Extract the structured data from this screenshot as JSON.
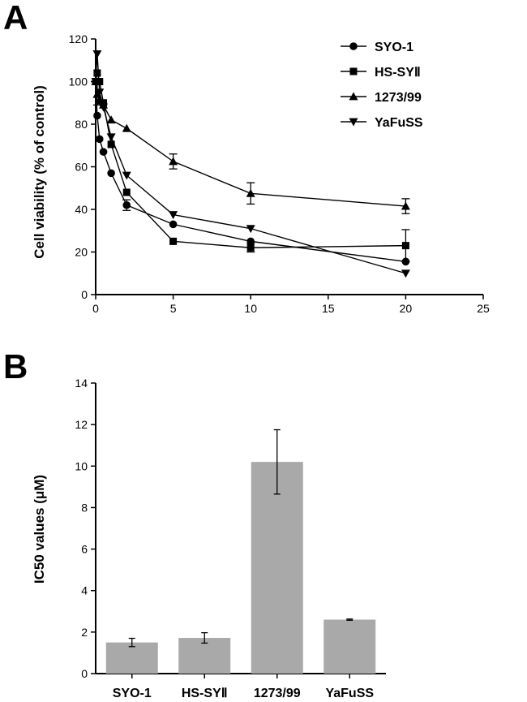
{
  "panel_a_label": "A",
  "panel_b_label": "B",
  "chart_data": [
    {
      "type": "line",
      "panel": "A",
      "title": "",
      "xlabel": "",
      "ylabel": "Cell viability (% of control)",
      "xlim": [
        0,
        25
      ],
      "ylim": [
        0,
        120
      ],
      "xticks": [
        0,
        5,
        10,
        15,
        20,
        25
      ],
      "yticks": [
        0,
        20,
        40,
        60,
        80,
        100,
        120
      ],
      "legend_position": "top-right",
      "series": [
        {
          "name": "SYO-1",
          "marker": "circle",
          "x": [
            0,
            0.1,
            0.25,
            0.5,
            1,
            2,
            5,
            10,
            20
          ],
          "y": [
            100,
            84,
            73,
            67,
            57,
            42,
            33,
            25,
            15.5
          ],
          "err": [
            0,
            0,
            0,
            0,
            0,
            2.5,
            0,
            0,
            0
          ]
        },
        {
          "name": "HS-SYⅡ",
          "marker": "square",
          "x": [
            0,
            0.1,
            0.25,
            0.5,
            1,
            2,
            5,
            10,
            20
          ],
          "y": [
            100,
            104,
            100,
            90,
            70.5,
            48,
            25,
            22,
            23
          ],
          "err": [
            0,
            0,
            0,
            0,
            0,
            0,
            0,
            2,
            7.5
          ]
        },
        {
          "name": "1273/99",
          "marker": "triangle-up",
          "x": [
            0,
            0.1,
            0.25,
            0.5,
            1,
            2,
            5,
            10,
            20
          ],
          "y": [
            100,
            94,
            91,
            89,
            82,
            78,
            62.5,
            47.5,
            41.5
          ],
          "err": [
            0,
            5,
            0,
            0,
            0,
            0,
            3.5,
            5,
            3.5
          ]
        },
        {
          "name": "YaFuSS",
          "marker": "triangle-down",
          "x": [
            0,
            0.1,
            0.25,
            0.5,
            1,
            2,
            5,
            10,
            20
          ],
          "y": [
            100,
            113,
            95,
            88,
            74,
            56,
            37.5,
            31,
            10
          ],
          "err": [
            0,
            0,
            0,
            0,
            0,
            0,
            0,
            0,
            0
          ]
        }
      ]
    },
    {
      "type": "bar",
      "panel": "B",
      "title": "",
      "xlabel": "",
      "ylabel": "IC50 values (μM)",
      "ylim": [
        0,
        14
      ],
      "yticks": [
        0,
        2,
        4,
        6,
        8,
        10,
        12,
        14
      ],
      "categories": [
        "SYO-1",
        "HS-SYⅡ",
        "1273/99",
        "YaFuSS"
      ],
      "values": [
        1.5,
        1.72,
        10.2,
        2.6
      ],
      "errors": [
        0.2,
        0.25,
        1.55,
        0.03
      ],
      "bar_color": "#a9a9a9"
    }
  ]
}
